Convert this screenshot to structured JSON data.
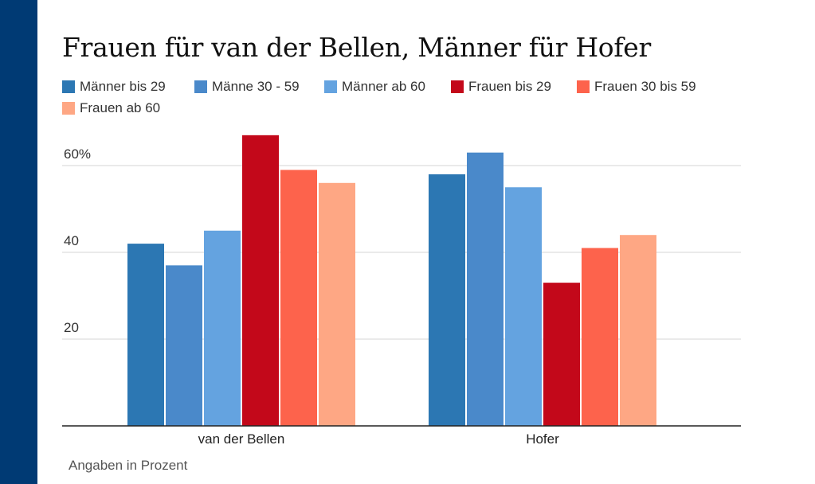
{
  "chart_data": {
    "type": "bar",
    "title": "Frauen für van der Bellen, Männer für Hofer",
    "categories": [
      "van der Bellen",
      "Hofer"
    ],
    "series": [
      {
        "name": "Männer bis 29",
        "color": "#2c77b3",
        "values": [
          42,
          58
        ]
      },
      {
        "name": "Männe 30 - 59",
        "color": "#4a89ca",
        "values": [
          37,
          63
        ]
      },
      {
        "name": "Männer ab 60",
        "color": "#64a3e0",
        "values": [
          45,
          55
        ]
      },
      {
        "name": "Frauen bis 29",
        "color": "#c3081a",
        "values": [
          67,
          33
        ]
      },
      {
        "name": "Frauen 30 bis 59",
        "color": "#fd634c",
        "values": [
          59,
          41
        ]
      },
      {
        "name": "Frauen ab 60",
        "color": "#fea784",
        "values": [
          56,
          44
        ]
      }
    ],
    "yticks": [
      {
        "value": 20,
        "label": "20"
      },
      {
        "value": 40,
        "label": "40"
      },
      {
        "value": 60,
        "label": "60%"
      }
    ],
    "ylim": [
      0,
      70
    ],
    "xlabel": "",
    "ylabel": "",
    "grid": true,
    "legend": "top"
  },
  "footnote": "Angaben in Prozent",
  "colors": {
    "sidebar": "#003a74",
    "grid": "#d6d6d6",
    "axis": "#222222"
  }
}
